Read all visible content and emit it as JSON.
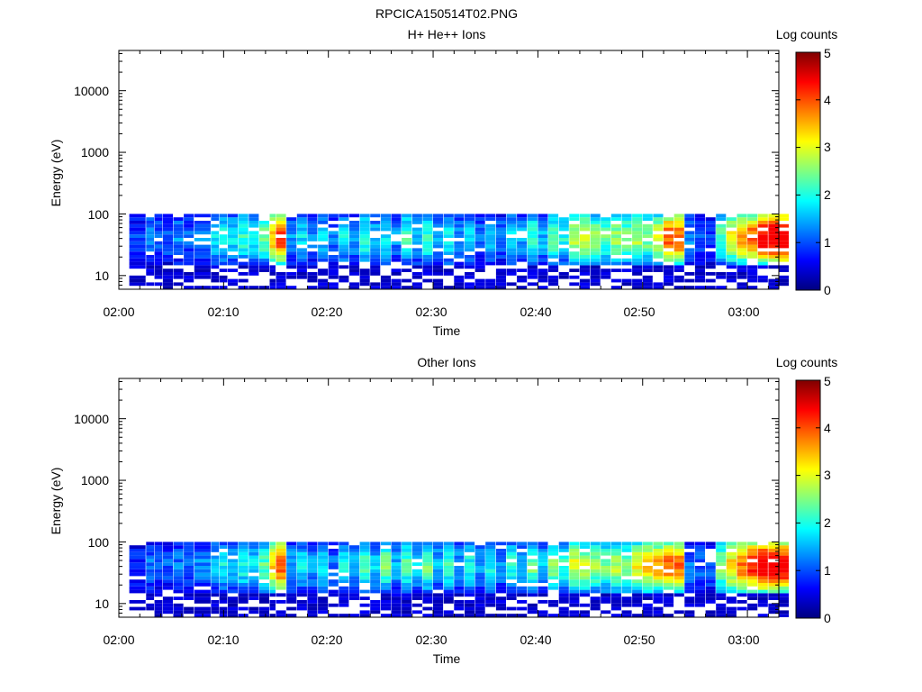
{
  "figure": {
    "title": "RPCICA150514T02.PNG"
  },
  "colorbar": {
    "stops": [
      "#00007f",
      "#0000ff",
      "#0080ff",
      "#00ffff",
      "#80ff80",
      "#ffff00",
      "#ff8000",
      "#ff0000",
      "#7f0000"
    ]
  },
  "chart_data": [
    {
      "type": "heatmap",
      "title": "H+ He++ Ions",
      "xlabel": "Time",
      "ylabel": "Energy (eV)",
      "y_scale": "log",
      "ylim": [
        6,
        45000
      ],
      "xlim": [
        "02:00",
        "03:03"
      ],
      "x_ticks": [
        "02:00",
        "02:10",
        "02:20",
        "02:30",
        "02:40",
        "02:50",
        "03:00"
      ],
      "y_ticks": [
        "10",
        "100",
        "1000",
        "10000"
      ],
      "colorbar": {
        "label": "Log counts",
        "range": [
          0,
          5
        ],
        "ticks": [
          "0",
          "1",
          "2",
          "3",
          "4",
          "5"
        ]
      },
      "time_bins_start_min": [
        1,
        2.6,
        3.4,
        4.2,
        5.2,
        6.2,
        7.2,
        8.8,
        9.6,
        10.4,
        11.4,
        12.4,
        13.4,
        14.4,
        15,
        16,
        17,
        18,
        19,
        20,
        21,
        22,
        23,
        24,
        25,
        26,
        27,
        28,
        29,
        30,
        31,
        32,
        33,
        34,
        35,
        36,
        37,
        38,
        39,
        40,
        41,
        42,
        43,
        44,
        45,
        46,
        47,
        48,
        49,
        50,
        51,
        52,
        53,
        54,
        55,
        56,
        57,
        58,
        59,
        60,
        61,
        62,
        63
      ],
      "time_bin_width_min": 1,
      "energy_range_eV": [
        6,
        100
      ],
      "profile": [
        0.8,
        1.2,
        1.0,
        1.0,
        1.2,
        1.0,
        1.2,
        1.6,
        1.8,
        1.6,
        1.9,
        1.6,
        2.2,
        3.2,
        3.8,
        1.3,
        1.6,
        1.2,
        1.5,
        1.1,
        1.7,
        1.3,
        1.9,
        1.4,
        1.7,
        1.2,
        2.0,
        1.5,
        1.9,
        1.3,
        1.8,
        1.2,
        1.6,
        1.1,
        1.5,
        1.1,
        1.7,
        1.3,
        2.0,
        1.4,
        2.1,
        1.8,
        2.6,
        2.8,
        2.4,
        2.1,
        2.4,
        2.2,
        2.5,
        2.3,
        2.7,
        3.6,
        3.6,
        1.2,
        1.0,
        0.9,
        2.1,
        2.8,
        3.3,
        3.6,
        4.1,
        4.4,
        4.3
      ],
      "max_log_counts": 4.4
    },
    {
      "type": "heatmap",
      "title": "Other Ions",
      "xlabel": "Time",
      "ylabel": "Energy (eV)",
      "y_scale": "log",
      "ylim": [
        6,
        45000
      ],
      "xlim": [
        "02:00",
        "03:03"
      ],
      "x_ticks": [
        "02:00",
        "02:10",
        "02:20",
        "02:30",
        "02:40",
        "02:50",
        "03:00"
      ],
      "y_ticks": [
        "10",
        "100",
        "1000",
        "10000"
      ],
      "colorbar": {
        "label": "Log counts",
        "range": [
          0,
          5
        ],
        "ticks": [
          "0",
          "1",
          "2",
          "3",
          "4",
          "5"
        ]
      },
      "time_bins_start_min": [
        1,
        2.6,
        3.4,
        4.2,
        5.2,
        6.2,
        7.2,
        8.8,
        9.6,
        10.4,
        11.4,
        12.4,
        13.4,
        14.4,
        15,
        16,
        17,
        18,
        19,
        20,
        21,
        22,
        23,
        24,
        25,
        26,
        27,
        28,
        29,
        30,
        31,
        32,
        33,
        34,
        35,
        36,
        37,
        38,
        39,
        40,
        41,
        42,
        43,
        44,
        45,
        46,
        47,
        48,
        49,
        50,
        51,
        52,
        53,
        54,
        55,
        56,
        57,
        58,
        59,
        60,
        61,
        62,
        63
      ],
      "time_bin_width_min": 1,
      "energy_range_eV": [
        6,
        100
      ],
      "profile": [
        0.7,
        1.1,
        1.0,
        1.0,
        1.1,
        1.0,
        1.2,
        1.5,
        1.7,
        1.6,
        1.8,
        1.6,
        2.1,
        3.1,
        3.7,
        1.3,
        1.6,
        1.3,
        1.6,
        1.1,
        1.8,
        1.4,
        2.0,
        1.5,
        2.2,
        1.4,
        2.1,
        1.6,
        2.2,
        1.4,
        1.9,
        1.3,
        1.8,
        1.2,
        1.7,
        1.2,
        1.9,
        1.4,
        2.2,
        1.5,
        2.3,
        1.9,
        2.7,
        2.6,
        2.4,
        2.2,
        2.5,
        2.3,
        2.8,
        3.0,
        3.2,
        3.6,
        3.5,
        1.1,
        1.0,
        1.0,
        2.3,
        3.0,
        3.5,
        3.9,
        4.3,
        4.4,
        4.2
      ],
      "max_log_counts": 4.4
    }
  ]
}
